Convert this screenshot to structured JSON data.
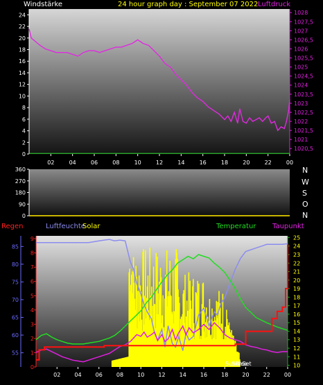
{
  "header": {
    "left_label": "Windstärke",
    "title": "24 hour graph day : September 07 2022",
    "right_label": "Luftdruck"
  },
  "direction_labels": [
    "N",
    "W",
    "S",
    "O",
    "N"
  ],
  "lower_legend": {
    "rain": "Regen",
    "humidity": "Luftfeuchte",
    "solar": "Solar",
    "temperature": "Temperatur",
    "dewpoint": "Taupunkt"
  },
  "sun_labels": {
    "sunrise": "SunRise",
    "sunset": "SunSet"
  },
  "colors": {
    "pressure": "#e02ae0",
    "wind": "#2fd12f",
    "solar": "#ffff00",
    "temperature": "#22dd22",
    "dewpoint": "#e020e0",
    "humidity": "#8c8cf0",
    "rain": "#ff1010",
    "axis_left": "#ffffff",
    "axis_right_top": "#e020e0",
    "rain_axis": "#ff2020",
    "humidity_axis": "#6a6aff",
    "temp_axis": "#ffff00"
  },
  "chart_data": [
    {
      "type": "line",
      "name": "wind-pressure",
      "x_ticks": [
        "02",
        "04",
        "06",
        "08",
        "10",
        "12",
        "14",
        "16",
        "18",
        "20",
        "22",
        "00"
      ],
      "y_left_ticks": [
        "0",
        "2",
        "4",
        "6",
        "8",
        "10",
        "12",
        "14",
        "16",
        "18",
        "20",
        "22",
        "24"
      ],
      "y_left_range": [
        0,
        25
      ],
      "y_right_ticks": [
        "1020,5",
        "1021",
        "1021,5",
        "1022",
        "1022,5",
        "1023",
        "1023,5",
        "1024",
        "1024,5",
        "1025",
        "1025,5",
        "1026",
        "1026,5",
        "1027",
        "1027,5",
        "1028"
      ],
      "y_right_range": [
        1020.2,
        1028.2
      ],
      "x_range": [
        0,
        24
      ],
      "series": [
        {
          "name": "Luftdruck",
          "axis": "right",
          "x": [
            0,
            0.2,
            0.6,
            1,
            1.5,
            2,
            2.5,
            3,
            3.5,
            4,
            4.5,
            5,
            5.5,
            6,
            6.5,
            7,
            7.5,
            8,
            8.5,
            9,
            9.5,
            10,
            10.5,
            11,
            11.5,
            12,
            12.5,
            13,
            13.5,
            14,
            14.5,
            15,
            15.5,
            16,
            16.5,
            17,
            17.5,
            18,
            18.3,
            18.6,
            18.9,
            19.2,
            19.4,
            19.7,
            20,
            20.3,
            20.6,
            20.9,
            21.2,
            21.5,
            21.8,
            22,
            22.3,
            22.6,
            22.9,
            23.2,
            23.5,
            23.7,
            23.9,
            24
          ],
          "y": [
            1027.1,
            1026.6,
            1026.4,
            1026.2,
            1026.0,
            1025.9,
            1025.8,
            1025.8,
            1025.8,
            1025.7,
            1025.6,
            1025.8,
            1025.9,
            1025.9,
            1025.8,
            1025.9,
            1026.0,
            1026.1,
            1026.1,
            1026.2,
            1026.3,
            1026.5,
            1026.3,
            1026.2,
            1025.9,
            1025.6,
            1025.2,
            1025.0,
            1024.6,
            1024.3,
            1024.0,
            1023.6,
            1023.3,
            1023.1,
            1022.8,
            1022.6,
            1022.4,
            1022.1,
            1022.3,
            1022.0,
            1022.5,
            1021.9,
            1022.7,
            1022.0,
            1021.9,
            1022.2,
            1022.0,
            1022.1,
            1022.2,
            1022.0,
            1022.2,
            1022.3,
            1021.9,
            1022.0,
            1021.5,
            1021.7,
            1021.6,
            1022.0,
            1022.6,
            1023.2
          ]
        },
        {
          "name": "Windstärke",
          "axis": "left",
          "x": [
            0,
            24
          ],
          "y": [
            0.1,
            0.1
          ]
        }
      ]
    },
    {
      "type": "line",
      "name": "wind-direction",
      "y_ticks": [
        "0",
        "90",
        "180",
        "270",
        "360"
      ],
      "y_range": [
        0,
        360
      ],
      "series": []
    },
    {
      "type": "line",
      "name": "rain-humidity-solar-temperature",
      "x_ticks": [
        "02",
        "04",
        "06",
        "08",
        "10",
        "12",
        "14",
        "16",
        "18",
        "20",
        "22",
        "00"
      ],
      "x_range": [
        0,
        24
      ],
      "rain_ticks": [
        "0",
        "1",
        "2",
        "3",
        "4",
        "5",
        "6",
        "7",
        "8",
        "9"
      ],
      "humidity_ticks": [
        "55",
        "60",
        "65",
        "70",
        "75",
        "80",
        "85"
      ],
      "humidity_range": [
        51,
        88
      ],
      "temp_ticks": [
        "10",
        "11",
        "12",
        "13",
        "14",
        "15",
        "16",
        "17",
        "18",
        "19",
        "20",
        "21",
        "22",
        "23",
        "24",
        "25"
      ],
      "temp_range": [
        9.8,
        25.2
      ],
      "series": [
        {
          "name": "Luftfeuchte",
          "axis": "humidity",
          "x": [
            0,
            1,
            2,
            3,
            4,
            5,
            6,
            6.5,
            7,
            7.5,
            8,
            8.5,
            9,
            9.3,
            9.6,
            10,
            10.3,
            10.6,
            11,
            11.3,
            11.6,
            12,
            12.3,
            12.6,
            13,
            13.3,
            13.6,
            14,
            14.3,
            14.6,
            15,
            15.5,
            16,
            16.5,
            17,
            17.3,
            17.6,
            18,
            18.5,
            19,
            19.5,
            20,
            21,
            22,
            23,
            23.5,
            24
          ],
          "y": [
            86.1,
            86.1,
            86.1,
            86.1,
            86.1,
            86.1,
            86.6,
            86.8,
            87.0,
            86.6,
            86.8,
            86.6,
            80.6,
            78.6,
            74.6,
            71.6,
            68.6,
            66.6,
            64.6,
            60.6,
            58.6,
            61.6,
            56.6,
            62.6,
            57.6,
            56.6,
            59.6,
            55.6,
            60.6,
            58.6,
            59.6,
            65.6,
            67.6,
            62.6,
            66.6,
            65.6,
            68.6,
            70.6,
            74.6,
            78.6,
            81.6,
            83.6,
            84.6,
            85.6,
            85.6,
            85.6,
            85.8
          ]
        },
        {
          "name": "Temperatur",
          "axis": "temp",
          "x": [
            0,
            0.5,
            1,
            1.5,
            2,
            2.5,
            3,
            3.5,
            4,
            4.5,
            5,
            5.5,
            6,
            6.5,
            7,
            7.5,
            8,
            8.5,
            9,
            9.5,
            10,
            10.5,
            11,
            11.5,
            12,
            12.5,
            13,
            13.5,
            14,
            14.5,
            15,
            15.5,
            16,
            16.5,
            17,
            17.5,
            18,
            18.5,
            19,
            19.5,
            20,
            20.5,
            21,
            22,
            23,
            24
          ],
          "y": [
            13.0,
            13.5,
            13.7,
            13.3,
            13.0,
            12.8,
            12.6,
            12.5,
            12.5,
            12.5,
            12.6,
            12.7,
            12.8,
            13.0,
            13.2,
            13.5,
            14.0,
            14.6,
            15.2,
            15.8,
            16.4,
            17.3,
            18.0,
            18.9,
            19.8,
            20.6,
            21.2,
            22.0,
            22.4,
            22.8,
            22.5,
            23.0,
            22.8,
            22.6,
            22.0,
            21.5,
            20.9,
            20.0,
            19.0,
            17.8,
            16.8,
            16.2,
            15.6,
            15.0,
            14.5,
            14.1
          ]
        },
        {
          "name": "Taupunkt",
          "axis": "temp",
          "x": [
            0,
            0.5,
            1,
            1.5,
            2,
            2.5,
            3,
            3.5,
            4,
            4.5,
            5,
            5.5,
            6,
            6.5,
            7,
            7.5,
            8,
            8.5,
            9,
            9.3,
            9.6,
            10,
            10.3,
            10.6,
            11,
            11.3,
            11.6,
            12,
            12.3,
            12.6,
            13,
            13.3,
            13.6,
            14,
            14.3,
            14.6,
            15,
            15.5,
            16,
            16.5,
            17,
            17.5,
            18,
            18.5,
            19,
            19.5,
            20,
            20.5,
            21,
            21.5,
            22,
            22.5,
            23,
            23.5,
            24
          ],
          "y": [
            11.5,
            11.8,
            11.9,
            11.6,
            11.3,
            11.0,
            10.8,
            10.6,
            10.5,
            10.4,
            10.6,
            10.8,
            11.0,
            11.2,
            11.4,
            11.8,
            12.2,
            12.4,
            12.8,
            13.2,
            13.6,
            13.4,
            13.9,
            13.3,
            13.6,
            13.9,
            12.9,
            13.6,
            12.8,
            13.1,
            14.2,
            13.0,
            13.8,
            14.6,
            13.6,
            14.4,
            13.8,
            14.2,
            14.8,
            14.2,
            15.0,
            14.4,
            13.6,
            13.2,
            13.0,
            12.8,
            12.4,
            12.2,
            12.1,
            11.9,
            11.8,
            11.6,
            11.5,
            11.6,
            11.6
          ]
        },
        {
          "name": "Regen",
          "axis": "rain",
          "x": [
            0,
            0.3,
            0.8,
            1.5,
            4,
            6,
            6.5,
            7,
            9,
            12,
            15,
            18,
            19,
            19.5,
            20,
            20.5,
            21.5,
            22.5,
            23,
            23.5,
            23.8,
            24
          ],
          "y": [
            0.5,
            1.2,
            1.4,
            1.4,
            1.4,
            1.4,
            1.5,
            1.5,
            1.5,
            1.5,
            1.5,
            1.5,
            1.6,
            1.6,
            2.5,
            2.5,
            2.5,
            3.4,
            3.9,
            4.2,
            5.5,
            8.6
          ]
        }
      ]
    }
  ]
}
